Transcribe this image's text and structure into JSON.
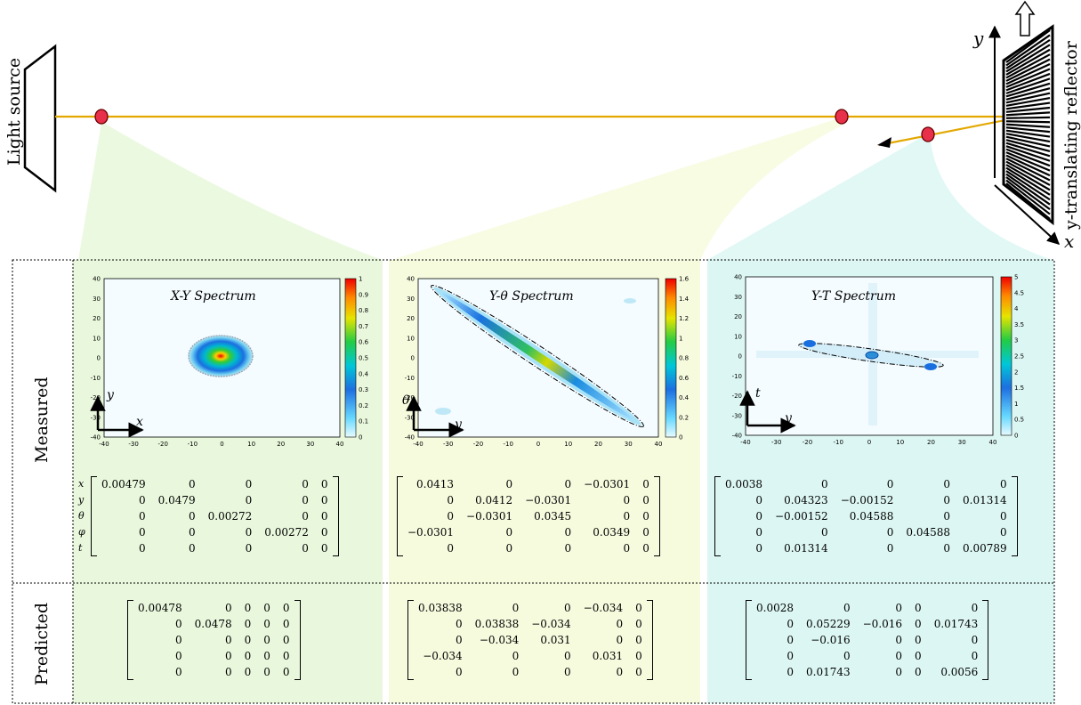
{
  "top": {
    "light_source_label": "Light source",
    "reflector_label": "y-translating reflector",
    "axis_y": "y",
    "axis_x": "x"
  },
  "table": {
    "row_measured": "Measured",
    "row_predicted": "Predicted",
    "row_vars": [
      "x",
      "y",
      "θ",
      "φ",
      "t"
    ]
  },
  "panels": [
    {
      "title": "X-Y Spectrum",
      "corner_v": "y",
      "corner_h": "x",
      "yticks": [
        "40",
        "30",
        "20",
        "10",
        "0",
        "-10",
        "-20",
        "-30",
        "-40"
      ],
      "xticks": [
        "-40",
        "-30",
        "-20",
        "-10",
        "0",
        "10",
        "20",
        "30",
        "40"
      ],
      "cbar": [
        "1",
        "0.9",
        "0.8",
        "0.7",
        "0.6",
        "0.5",
        "0.4",
        "0.3",
        "0.2",
        "0.1",
        "0"
      ]
    },
    {
      "title": "Y-θ Spectrum",
      "corner_v": "θ",
      "corner_h": "y",
      "yticks": [
        "40",
        "30",
        "20",
        "10",
        "0",
        "-10",
        "-20",
        "-30",
        "-40"
      ],
      "xticks": [
        "-40",
        "-30",
        "-20",
        "-10",
        "0",
        "10",
        "20",
        "30",
        "40"
      ],
      "cbar": [
        "1.6",
        "1.4",
        "1.2",
        "1",
        "0.8",
        "0.6",
        "0.4",
        "0.2",
        "0"
      ]
    },
    {
      "title": "Y-T Spectrum",
      "corner_v": "t",
      "corner_h": "y",
      "yticks": [
        "40",
        "30",
        "20",
        "10",
        "0",
        "-10",
        "-20",
        "-30",
        "-40"
      ],
      "xticks": [
        "-40",
        "-30",
        "-20",
        "-10",
        "0",
        "10",
        "20",
        "30",
        "40"
      ],
      "cbar": [
        "5",
        "4.5",
        "4",
        "3.5",
        "3",
        "2.5",
        "2",
        "1.5",
        "1",
        "0.5",
        "0"
      ]
    }
  ],
  "measured": [
    [
      [
        "0.00479",
        "0",
        "0",
        "0",
        "0"
      ],
      [
        "0",
        "0.0479",
        "0",
        "0",
        "0"
      ],
      [
        "0",
        "0",
        "0.00272",
        "0",
        "0"
      ],
      [
        "0",
        "0",
        "0",
        "0.00272",
        "0"
      ],
      [
        "0",
        "0",
        "0",
        "0",
        "0"
      ]
    ],
    [
      [
        "0.0413",
        "0",
        "0",
        "−0.0301",
        "0"
      ],
      [
        "0",
        "0.0412",
        "−0.0301",
        "0",
        "0"
      ],
      [
        "0",
        "−0.0301",
        "0.0345",
        "0",
        "0"
      ],
      [
        "−0.0301",
        "0",
        "0",
        "0.0349",
        "0"
      ],
      [
        "0",
        "0",
        "0",
        "0",
        "0"
      ]
    ],
    [
      [
        "0.0038",
        "0",
        "0",
        "0",
        "0"
      ],
      [
        "0",
        "0.04323",
        "−0.00152",
        "0",
        "0.01314"
      ],
      [
        "0",
        "−0.00152",
        "0.04588",
        "0",
        "0"
      ],
      [
        "0",
        "0",
        "0",
        "0.04588",
        "0"
      ],
      [
        "0",
        "0.01314",
        "0",
        "0",
        "0.00789"
      ]
    ]
  ],
  "predicted": [
    [
      [
        "0.00478",
        "0",
        "0",
        "0",
        "0"
      ],
      [
        "0",
        "0.0478",
        "0",
        "0",
        "0"
      ],
      [
        "0",
        "0",
        "0",
        "0",
        "0"
      ],
      [
        "0",
        "0",
        "0",
        "0",
        "0"
      ],
      [
        "0",
        "0",
        "0",
        "0",
        "0"
      ]
    ],
    [
      [
        "0.03838",
        "0",
        "0",
        "−0.034",
        "0"
      ],
      [
        "0",
        "0.03838",
        "−0.034",
        "0",
        "0"
      ],
      [
        "0",
        "−0.034",
        "0.031",
        "0",
        "0"
      ],
      [
        "−0.034",
        "0",
        "0",
        "0.031",
        "0"
      ],
      [
        "0",
        "0",
        "0",
        "0",
        "0"
      ]
    ],
    [
      [
        "0.0028",
        "0",
        "0",
        "0",
        "0"
      ],
      [
        "0",
        "0.05229",
        "−0.016",
        "0",
        "0.01743"
      ],
      [
        "0",
        "−0.016",
        "0",
        "0",
        "0"
      ],
      [
        "0",
        "0",
        "0",
        "0",
        "0"
      ],
      [
        "0",
        "0.01743",
        "0",
        "0",
        "0.0056"
      ]
    ]
  ],
  "colors": {
    "beam": "#e3a800",
    "node": "#e8304a",
    "panel1": "#e9f8dc",
    "panel2": "#f6fbde",
    "panel3": "#dcf7f3"
  }
}
